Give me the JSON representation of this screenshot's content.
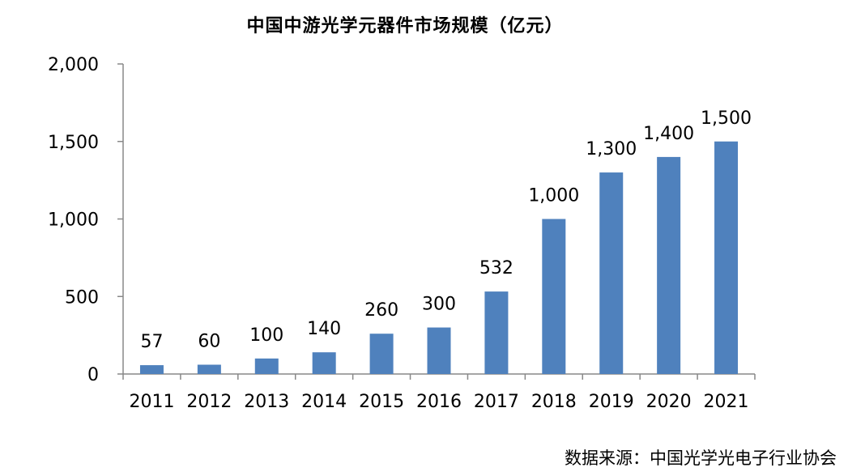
{
  "chart_data": {
    "type": "bar",
    "title": "中国中游光学元器件市场规模（亿元）",
    "categories": [
      "2011",
      "2012",
      "2013",
      "2014",
      "2015",
      "2016",
      "2017",
      "2018",
      "2019",
      "2020",
      "2021"
    ],
    "values": [
      57,
      60,
      100,
      140,
      260,
      300,
      532,
      1000,
      1300,
      1400,
      1500
    ],
    "value_labels": [
      "57",
      "60",
      "100",
      "140",
      "260",
      "300",
      "532",
      "1,000",
      "1,300",
      "1,400",
      "1,500"
    ],
    "yticks": [
      0,
      500,
      1000,
      1500,
      2000
    ],
    "ytick_labels": [
      "0",
      "500",
      "1,000",
      "1,500",
      "2,000"
    ],
    "ylim": [
      0,
      2000
    ],
    "xlabel": "",
    "ylabel": "",
    "grid": false,
    "bar_color": "#4F81BD",
    "axis_color": "#888888"
  },
  "source_note": "数据来源：中国光学光电子行业协会"
}
